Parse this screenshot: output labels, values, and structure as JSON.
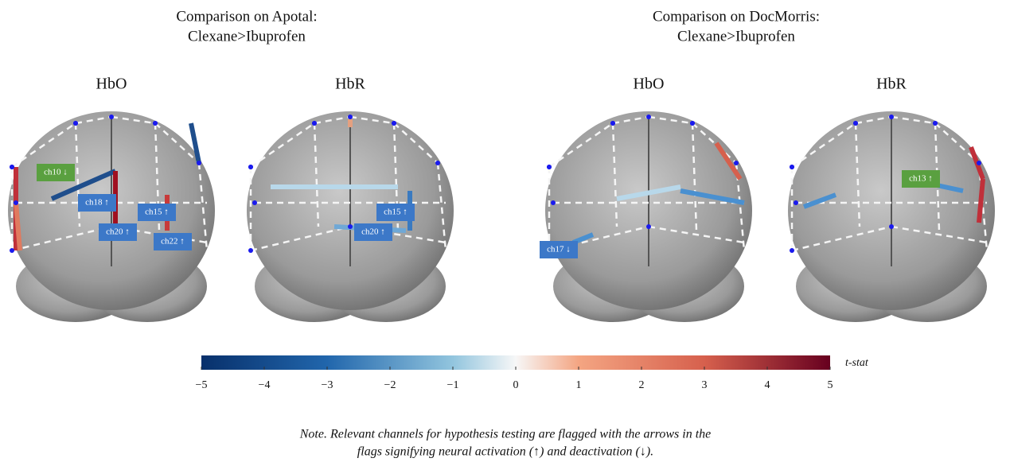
{
  "groups": [
    {
      "title": [
        "Comparison on Apotal:",
        "Clexane>Ibuprofen"
      ],
      "panels": [
        {
          "label": "HbO",
          "flags": [
            {
              "text": "ch10 ↓",
              "color": "#5aa040"
            },
            {
              "text": "ch18 ↑",
              "color": "#3c78c8"
            },
            {
              "text": "ch15 ↑",
              "color": "#3c78c8"
            },
            {
              "text": "ch20 ↑",
              "color": "#3c78c8"
            },
            {
              "text": "ch22 ↑",
              "color": "#3c78c8"
            }
          ]
        },
        {
          "label": "HbR",
          "flags": [
            {
              "text": "ch15 ↑",
              "color": "#3c78c8"
            },
            {
              "text": "ch20 ↑",
              "color": "#3c78c8"
            }
          ]
        }
      ]
    },
    {
      "title": [
        "Comparison on DocMorris:",
        "Clexane>Ibuprofen"
      ],
      "panels": [
        {
          "label": "HbO",
          "flags": [
            {
              "text": "ch17 ↓",
              "color": "#3c78c8"
            }
          ]
        },
        {
          "label": "HbR",
          "flags": [
            {
              "text": "ch13 ↑",
              "color": "#5aa040"
            }
          ]
        }
      ]
    }
  ],
  "colorbar": {
    "label": "t-stat",
    "ticks": [
      "−5",
      "−4",
      "−3",
      "−2",
      "−1",
      "0",
      "1",
      "2",
      "3",
      "4",
      "5"
    ]
  },
  "note": [
    "Note. Relevant channels for hypothesis testing are flagged with the arrows in the",
    "flags signifying neural activation (↑) and deactivation (↓)."
  ]
}
